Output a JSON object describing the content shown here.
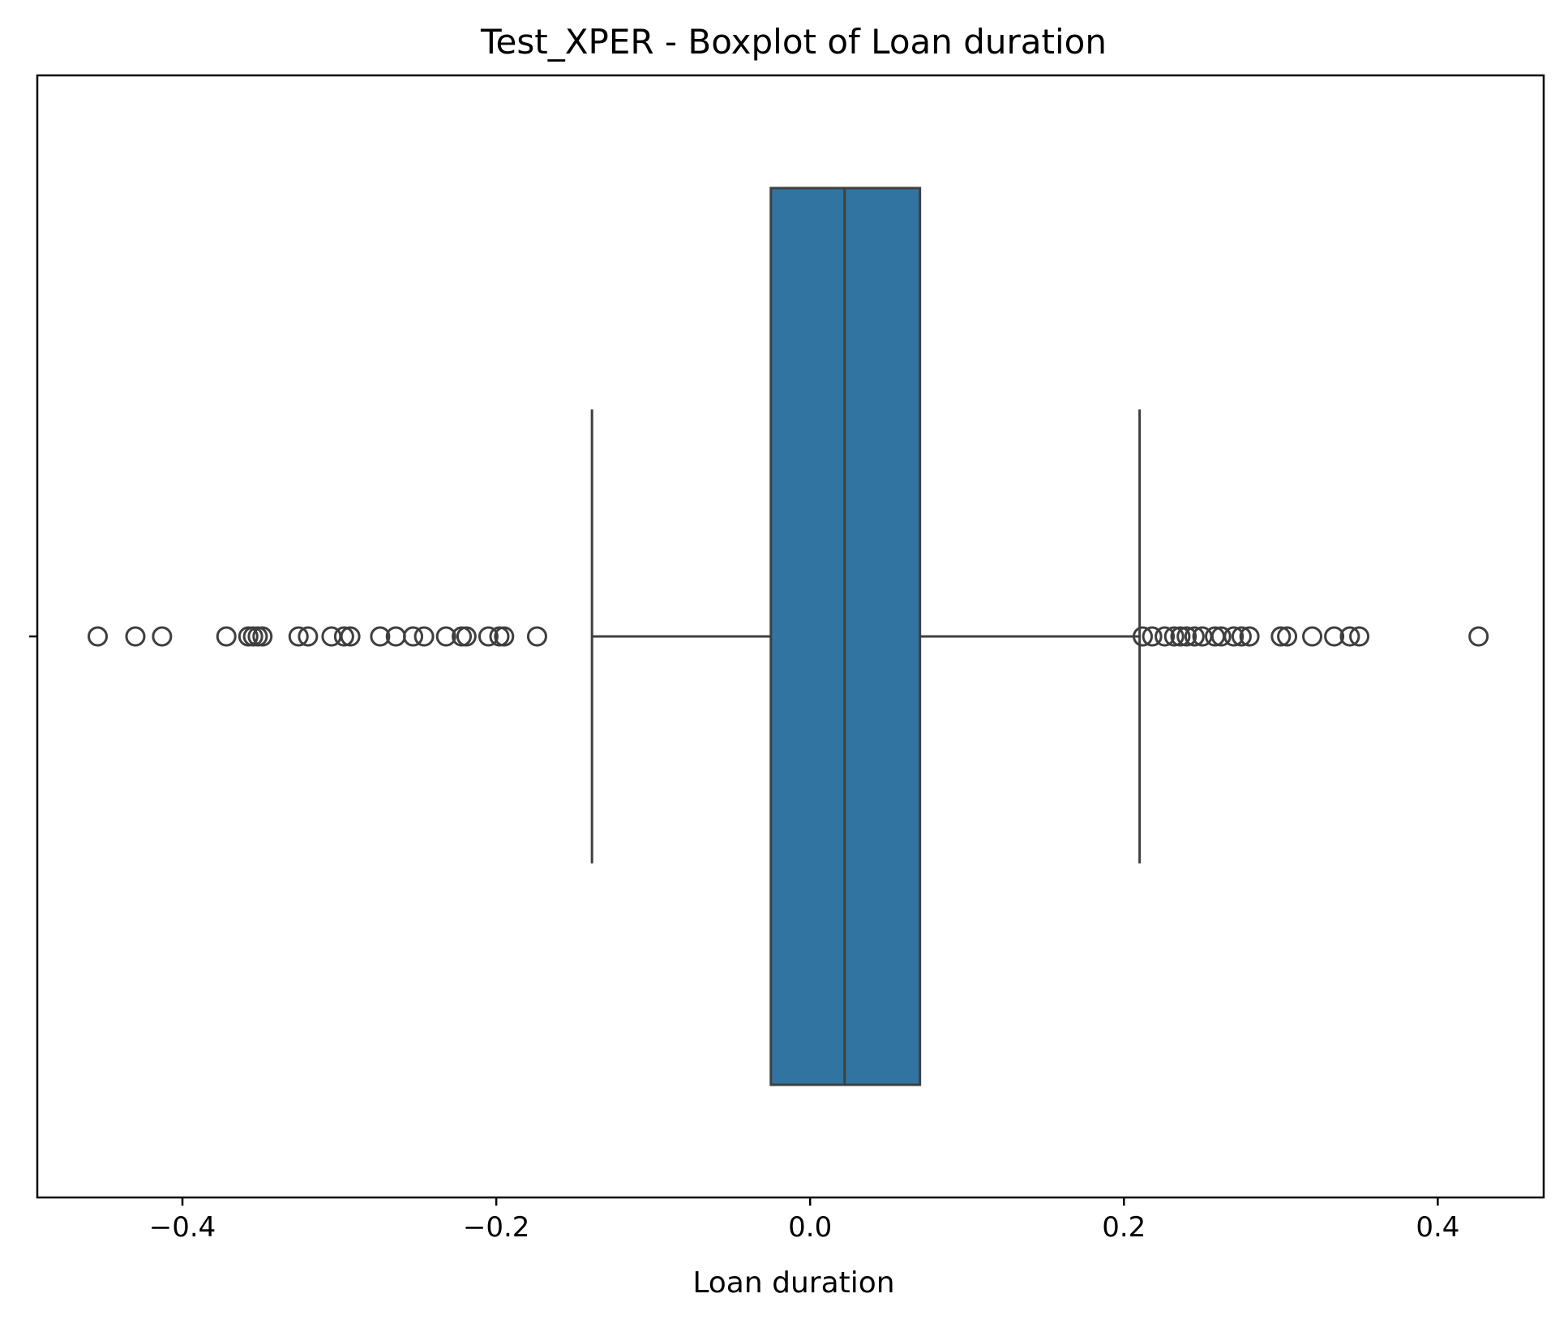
{
  "chart_data": {
    "type": "boxplot",
    "title": "Test_XPER - Boxplot of Loan duration",
    "xlabel": "Loan duration",
    "ylabel": "",
    "orientation": "horizontal",
    "xlim": [
      -0.4925,
      0.4675
    ],
    "x_ticks": [
      -0.4,
      -0.2,
      0.0,
      0.2,
      0.4
    ],
    "x_tick_labels": [
      "−0.4",
      "−0.2",
      "0.0",
      "0.2",
      "0.4"
    ],
    "grid": false,
    "legend": "none",
    "box": {
      "whisker_low": -0.139,
      "q1": -0.025,
      "median": 0.022,
      "q3": 0.07,
      "whisker_high": 0.21
    },
    "outliers": [
      -0.454,
      -0.43,
      -0.413,
      -0.372,
      -0.358,
      -0.355,
      -0.352,
      -0.349,
      -0.326,
      -0.32,
      -0.305,
      -0.297,
      -0.293,
      -0.274,
      -0.264,
      -0.253,
      -0.246,
      -0.232,
      -0.222,
      -0.219,
      -0.205,
      -0.198,
      -0.195,
      -0.174,
      0.212,
      0.218,
      0.226,
      0.232,
      0.236,
      0.24,
      0.245,
      0.25,
      0.258,
      0.262,
      0.27,
      0.275,
      0.28,
      0.3,
      0.304,
      0.32,
      0.334,
      0.344,
      0.35,
      0.426
    ],
    "colors": {
      "box_fill": "#3274a1",
      "line": "#3f3f3f",
      "axes": "#000000",
      "background": "#ffffff"
    }
  }
}
